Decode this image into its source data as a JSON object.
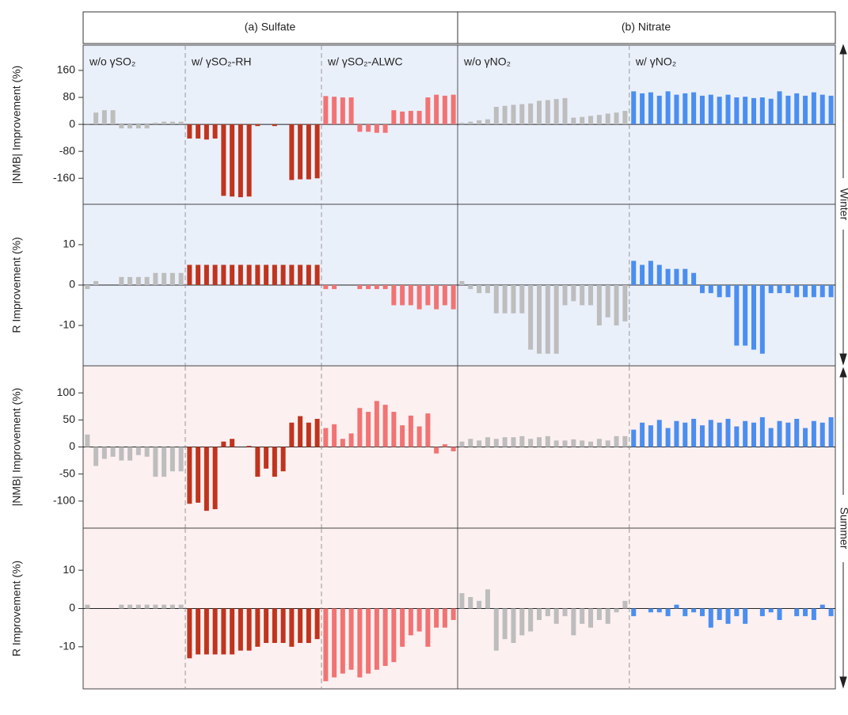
{
  "panel_titles": [
    "(a) Sulfate",
    "(b) Nitrate"
  ],
  "seasons": [
    "Winter",
    "Summer"
  ],
  "chart_data": [
    {
      "type": "bar",
      "ylabel": "|NMB| Improvement (%)",
      "ylim": [
        -237,
        235
      ],
      "yticks": [
        -160,
        -80,
        0,
        80,
        160
      ],
      "series": [
        {
          "name": "w/o γSO₂",
          "color": "#bdbdbd",
          "values": [
            3,
            35,
            42,
            42,
            -12,
            -12,
            -12,
            -12,
            5,
            8,
            8,
            8
          ]
        },
        {
          "name": "w/ γSO₂-RH",
          "color": "#c0341d",
          "values": [
            -42,
            -42,
            -45,
            -42,
            -212,
            -214,
            -216,
            -214,
            -5,
            0,
            -5,
            0,
            -165,
            -163,
            -163,
            -160
          ]
        },
        {
          "name": "w/ γSO₂-ALWC",
          "color": "#f27373",
          "values": [
            84,
            82,
            80,
            80,
            -22,
            -22,
            -25,
            -25,
            42,
            38,
            40,
            40,
            80,
            88,
            85,
            88
          ]
        },
        {
          "name": "w/o γNO₂",
          "color": "#bdbdbd",
          "values": [
            5,
            8,
            12,
            15,
            52,
            55,
            58,
            60,
            62,
            70,
            72,
            75,
            78,
            20,
            22,
            25,
            28,
            32,
            35,
            40
          ]
        },
        {
          "name": "w/ γNO₂",
          "color": "#4a8ef0",
          "values": [
            98,
            92,
            95,
            85,
            98,
            88,
            92,
            95,
            85,
            88,
            82,
            88,
            80,
            82,
            78,
            80,
            76,
            98,
            85,
            92,
            85,
            95,
            88,
            85
          ]
        }
      ]
    },
    {
      "type": "bar",
      "ylabel": "R Improvement (%)",
      "ylim": [
        -20,
        20
      ],
      "yticks": [
        -10,
        0,
        10
      ],
      "series": [
        {
          "color": "#bdbdbd",
          "values": [
            -1,
            1,
            0,
            0,
            2,
            2,
            2,
            2,
            3,
            3,
            3,
            3
          ]
        },
        {
          "color": "#c0341d",
          "values": [
            5,
            5,
            5,
            5,
            5,
            5,
            5,
            5,
            5,
            5,
            5,
            5,
            5,
            5,
            5,
            5
          ]
        },
        {
          "color": "#f27373",
          "values": [
            -1,
            -1,
            0,
            0,
            -1,
            -1,
            -1,
            -1,
            -5,
            -5,
            -5,
            -6,
            -5,
            -6,
            -5,
            -6
          ]
        },
        {
          "color": "#bdbdbd",
          "values": [
            1,
            -1,
            -2,
            -2,
            -7,
            -7,
            -7,
            -7,
            -16,
            -17,
            -17,
            -17,
            -5,
            -4,
            -5,
            -5,
            -10,
            -8,
            -10,
            -9
          ]
        },
        {
          "color": "#4a8ef0",
          "values": [
            6,
            5,
            6,
            5,
            4,
            4,
            4,
            3,
            -2,
            -2,
            -3,
            -3,
            -15,
            -15,
            -16,
            -17,
            -2,
            -2,
            -2,
            -3,
            -3,
            -3,
            -3,
            -3
          ]
        }
      ]
    },
    {
      "type": "bar",
      "ylabel": "|NMB| Improvement (%)",
      "ylim": [
        -150,
        150
      ],
      "yticks": [
        -100,
        -50,
        0,
        50,
        100
      ],
      "series": [
        {
          "color": "#bdbdbd",
          "values": [
            23,
            -35,
            -22,
            -18,
            -25,
            -25,
            -15,
            -18,
            -55,
            -55,
            -45,
            -45
          ]
        },
        {
          "color": "#c0341d",
          "values": [
            -105,
            -103,
            -118,
            -115,
            10,
            15,
            0,
            2,
            -55,
            -40,
            -55,
            -45,
            45,
            57,
            45,
            52
          ]
        },
        {
          "color": "#f27373",
          "values": [
            35,
            42,
            15,
            25,
            72,
            65,
            85,
            78,
            65,
            40,
            58,
            38,
            62,
            -12,
            5,
            -8
          ]
        },
        {
          "color": "#bdbdbd",
          "values": [
            10,
            15,
            12,
            18,
            15,
            18,
            18,
            20,
            15,
            18,
            20,
            12,
            12,
            14,
            12,
            10,
            15,
            12,
            20,
            20
          ]
        },
        {
          "color": "#4a8ef0",
          "values": [
            32,
            45,
            40,
            50,
            35,
            48,
            45,
            52,
            40,
            50,
            45,
            52,
            38,
            48,
            45,
            55,
            35,
            48,
            45,
            52,
            35,
            48,
            45,
            55
          ]
        }
      ]
    },
    {
      "type": "bar",
      "ylabel": "R Improvement (%)",
      "ylim": [
        -21,
        21
      ],
      "yticks": [
        -10,
        0,
        10
      ],
      "series": [
        {
          "color": "#bdbdbd",
          "values": [
            1,
            0,
            0,
            0,
            1,
            1,
            1,
            1,
            1,
            1,
            1,
            1
          ]
        },
        {
          "color": "#c0341d",
          "values": [
            -13,
            -12,
            -12,
            -12,
            -12,
            -12,
            -11,
            -11,
            -10,
            -9,
            -9,
            -9,
            -10,
            -9,
            -9,
            -8
          ]
        },
        {
          "color": "#f27373",
          "values": [
            -19,
            -18,
            -17,
            -16,
            -18,
            -17,
            -16,
            -15,
            -14,
            -10,
            -7,
            -6,
            -10,
            -5,
            -5,
            -3
          ]
        },
        {
          "color": "#bdbdbd",
          "values": [
            4,
            3,
            2,
            5,
            -11,
            -8,
            -9,
            -7,
            -6,
            -3,
            -2,
            -4,
            -2,
            -7,
            -4,
            -5,
            -3,
            -4,
            -1,
            2
          ]
        },
        {
          "color": "#4a8ef0",
          "values": [
            -2,
            0,
            -1,
            -1,
            -2,
            1,
            -2,
            -1,
            -2,
            -5,
            -3,
            -4,
            -2,
            -4,
            0,
            -2,
            -1,
            -3,
            0,
            -2,
            -2,
            -3,
            1,
            -2
          ]
        }
      ]
    }
  ]
}
